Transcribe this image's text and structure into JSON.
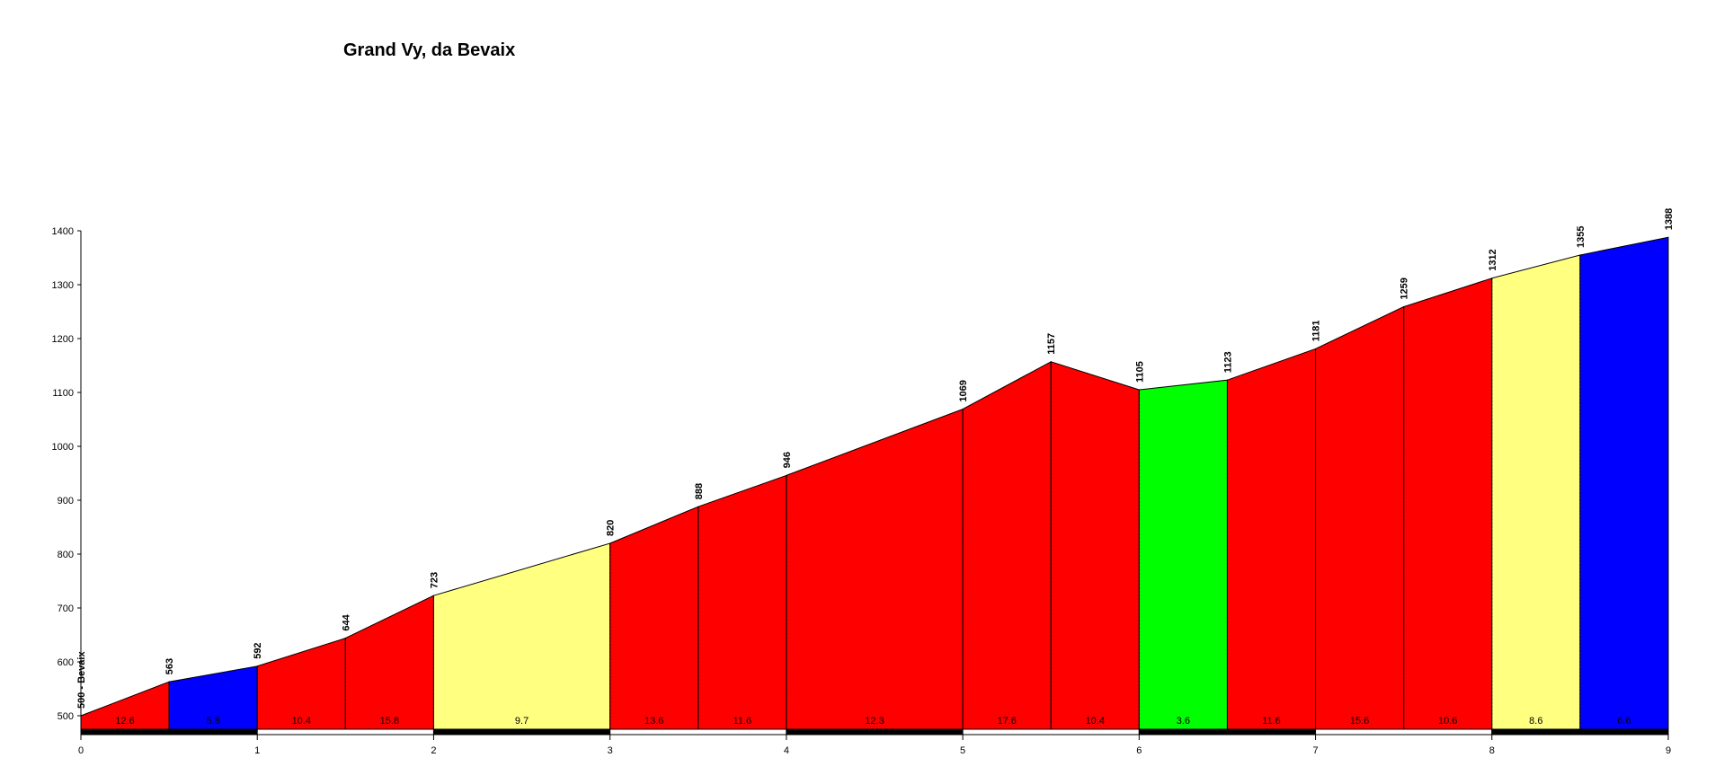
{
  "chart_data": {
    "type": "area",
    "title": "Grand Vy, da Bevaix",
    "x": [
      0,
      0.5,
      1,
      1.5,
      2,
      3,
      3.5,
      4,
      5,
      5.5,
      6,
      6.5,
      7,
      7.5,
      8,
      8.5,
      9
    ],
    "values": [
      500,
      563,
      592,
      644,
      723,
      820,
      888,
      946,
      1069,
      1157,
      1105,
      1123,
      1181,
      1259,
      1312,
      1355,
      1388
    ],
    "value_labels": [
      "500 - Bevaix",
      "563",
      "592",
      "644",
      "723",
      "820",
      "888",
      "946",
      "1069",
      "1157",
      "1105",
      "1123",
      "1181",
      "1259",
      "1312",
      "1355",
      "1388"
    ],
    "segment_gradients": [
      12.6,
      5.8,
      10.4,
      15.8,
      9.7,
      13.6,
      11.6,
      12.3,
      17.6,
      10.4,
      3.6,
      11.6,
      15.6,
      10.6,
      8.6,
      6.6
    ],
    "segment_colors": [
      "#ff0000",
      "#0000ff",
      "#ff0000",
      "#ff0000",
      "#ffff80",
      "#ff0000",
      "#ff0000",
      "#ff0000",
      "#ff0000",
      "#ff0000",
      "#00ff00",
      "#ff0000",
      "#ff0000",
      "#ff0000",
      "#ffff80",
      "#0000ff"
    ],
    "xlim": [
      0,
      9
    ],
    "xticks": [
      0,
      1,
      2,
      3,
      4,
      5,
      6,
      7,
      8,
      9
    ],
    "ylim": [
      475,
      1400
    ],
    "yticks": [
      500,
      600,
      700,
      800,
      900,
      1000,
      1100,
      1200,
      1300,
      1400
    ]
  }
}
